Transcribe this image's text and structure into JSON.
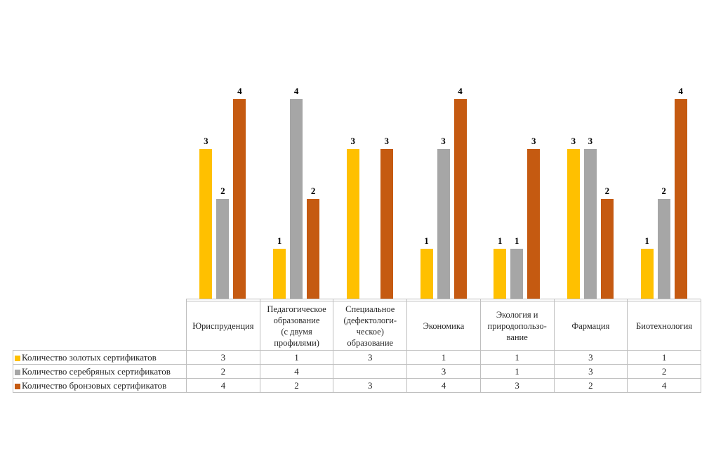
{
  "chart_data": {
    "type": "bar",
    "title": "",
    "xlabel": "",
    "ylabel": "",
    "ylim": [
      0,
      4
    ],
    "gridlines": false,
    "value_axis_visible": false,
    "data_labels": true,
    "data_table_shown": true,
    "legend_position": "data-table-row-headers",
    "categories": [
      "Юриспруденция",
      "Педагогическое образование (с двумя профилями)",
      "Специальное (дефектологическое) образование",
      "Экономика",
      "Экология и природопользование",
      "Фармация",
      "Биотехнология"
    ],
    "category_display": [
      "Юриспруденция",
      "Педагогическое\nобразование\n(с двумя\nпрофилями)",
      "Специальное\n(дефектологи-\nческое)\nобразование",
      "Экономика",
      "Экология и\nприродопользо-\nвание",
      "Фармация",
      "Биотехнология"
    ],
    "series": [
      {
        "id": "gold",
        "name": "Количество золотых сертификатов",
        "color": "#FFC000",
        "values": [
          3,
          1,
          3,
          1,
          1,
          3,
          1
        ]
      },
      {
        "id": "silver",
        "name": "Количество серебряных сертификатов",
        "color": "#A6A6A6",
        "values": [
          2,
          4,
          null,
          3,
          1,
          3,
          2
        ]
      },
      {
        "id": "bronze",
        "name": "Количество бронзовых сертификатов",
        "color": "#C55A11",
        "values": [
          4,
          2,
          3,
          4,
          3,
          2,
          4
        ]
      }
    ]
  },
  "colors": {
    "background": "#FFFFFF",
    "axis_line": "#BFBFBF",
    "table_border": "#BFBFBF",
    "label_text": "#000000",
    "table_text": "#262626"
  }
}
